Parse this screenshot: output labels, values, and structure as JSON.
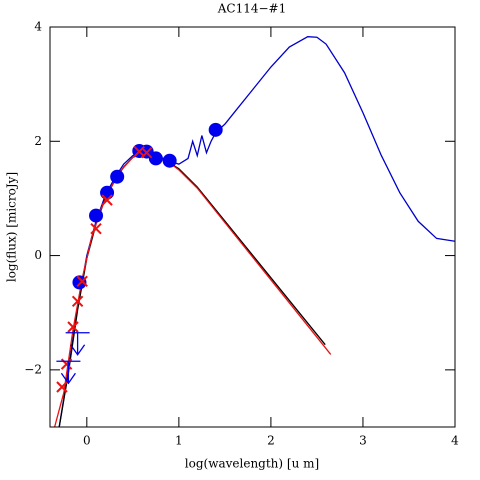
{
  "chart_data": {
    "type": "line",
    "title": "AC114−#1",
    "xlabel": "log(wavelength) [u m]",
    "ylabel": "log(flux) [microJy]",
    "xlim": [
      -0.4,
      4
    ],
    "ylim": [
      -3,
      4
    ],
    "xticks": [
      0,
      1,
      2,
      3,
      4
    ],
    "yticks": [
      {
        "value": -2,
        "label": "−2"
      },
      0,
      2,
      4
    ],
    "series": [
      {
        "style": "line",
        "color": "#0000cc",
        "x": [
          -0.3,
          -0.2,
          -0.1,
          0,
          0.1,
          0.2,
          0.3,
          0.4,
          0.5,
          0.6,
          0.7,
          0.8,
          0.9,
          1.0,
          1.1,
          1.15,
          1.2,
          1.25,
          1.3,
          1.35,
          1.4,
          1.5,
          1.6,
          1.8,
          2.0,
          2.2,
          2.4,
          2.5,
          2.6,
          2.8,
          3.0,
          3.2,
          3.4,
          3.6,
          3.8,
          4.0
        ],
        "values": [
          -3,
          -2,
          -0.9,
          0,
          0.6,
          1.05,
          1.35,
          1.6,
          1.75,
          1.8,
          1.75,
          1.72,
          1.65,
          1.6,
          1.7,
          2.0,
          1.75,
          2.1,
          1.8,
          2.0,
          2.15,
          2.3,
          2.5,
          2.9,
          3.3,
          3.65,
          3.83,
          3.82,
          3.7,
          3.2,
          2.5,
          1.75,
          1.1,
          0.6,
          0.3,
          0.25
        ]
      },
      {
        "style": "line",
        "color": "#000000",
        "x": [
          -0.3,
          -0.2,
          -0.1,
          0,
          0.1,
          0.2,
          0.3,
          0.4,
          0.5,
          0.6,
          0.7,
          0.8,
          0.9,
          1.0,
          1.2,
          2.59
        ],
        "values": [
          -3,
          -2.05,
          -0.95,
          -0.05,
          0.55,
          1.0,
          1.3,
          1.55,
          1.72,
          1.78,
          1.74,
          1.7,
          1.62,
          1.52,
          1.2,
          -1.56
        ]
      },
      {
        "style": "line",
        "color": "#ee1111",
        "x": [
          -0.35,
          -0.25,
          -0.15,
          -0.05,
          0.05,
          0.15,
          0.25,
          0.35,
          0.5,
          0.6,
          0.7,
          0.8,
          0.9,
          1.0,
          1.2,
          2.65
        ],
        "values": [
          -3,
          -2.4,
          -1.3,
          -0.4,
          0.3,
          0.8,
          1.15,
          1.45,
          1.72,
          1.8,
          1.76,
          1.7,
          1.62,
          1.5,
          1.18,
          -1.73
        ]
      },
      {
        "style": "circle",
        "color": "#0000ee",
        "x": [
          -0.08,
          0.1,
          0.22,
          0.33,
          0.57,
          0.65,
          0.75,
          0.9,
          1.4
        ],
        "values": [
          -0.47,
          0.7,
          1.1,
          1.38,
          1.83,
          1.82,
          1.7,
          1.66,
          2.2
        ]
      },
      {
        "style": "cross",
        "color": "#ee1111",
        "x": [
          -0.27,
          -0.22,
          -0.15,
          -0.1,
          -0.05,
          0.1,
          0.22,
          0.57,
          0.65
        ],
        "values": [
          -2.3,
          -1.9,
          -1.25,
          -0.8,
          -0.45,
          0.47,
          0.97,
          1.82,
          1.8
        ]
      },
      {
        "style": "arrow",
        "color": "#0000ee",
        "x": [
          -0.2,
          -0.1
        ],
        "values": [
          -1.85,
          -1.35
        ]
      }
    ]
  }
}
